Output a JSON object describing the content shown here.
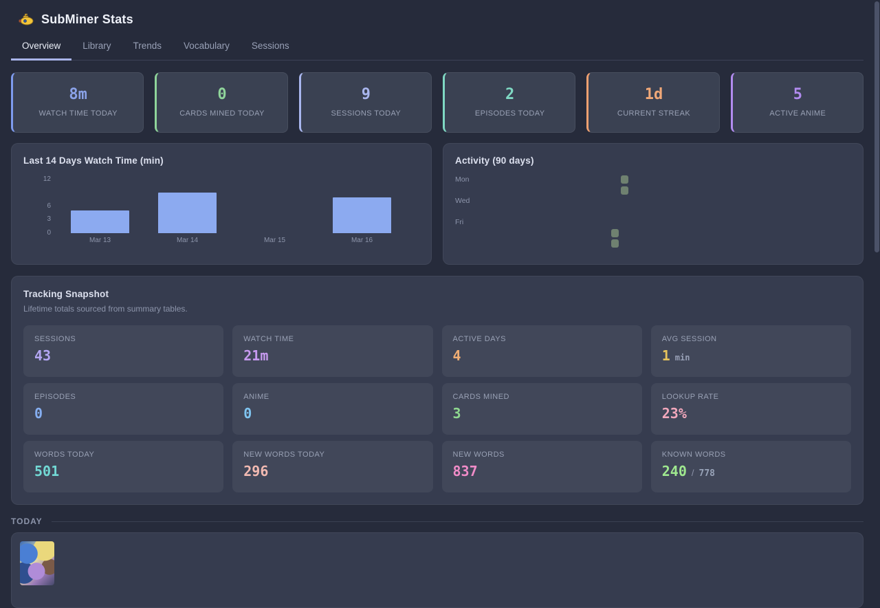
{
  "app": {
    "title": "SubMiner Stats",
    "logo_icon": "yellow-submarine"
  },
  "tabs": [
    {
      "label": "Overview",
      "active": true
    },
    {
      "label": "Library",
      "active": false
    },
    {
      "label": "Trends",
      "active": false
    },
    {
      "label": "Vocabulary",
      "active": false
    },
    {
      "label": "Sessions",
      "active": false
    }
  ],
  "stat_cards": [
    {
      "value": "8m",
      "label": "WATCH TIME TODAY",
      "color": "#8aa2e8",
      "accent": "#7e9bee"
    },
    {
      "value": "0",
      "label": "CARDS MINED TODAY",
      "color": "#8fd49a",
      "accent": "#8fd49a"
    },
    {
      "value": "9",
      "label": "SESSIONS TODAY",
      "color": "#a9b6ee",
      "accent": "#a9b6ee"
    },
    {
      "value": "2",
      "label": "EPISODES TODAY",
      "color": "#7fd8c3",
      "accent": "#7fd8c3"
    },
    {
      "value": "1d",
      "label": "CURRENT STREAK",
      "color": "#f0a878",
      "accent": "#f0a070"
    },
    {
      "value": "5",
      "label": "ACTIVE ANIME",
      "color": "#b28cf0",
      "accent": "#b28cf0"
    }
  ],
  "chart_data": [
    {
      "type": "bar",
      "title": "Last 14 Days Watch Time (min)",
      "categories": [
        "Mar 13",
        "Mar 14",
        "Mar 15",
        "Mar 16"
      ],
      "values": [
        5,
        9,
        0,
        8
      ],
      "yticks": [
        0,
        3,
        6,
        12
      ],
      "ylim": [
        0,
        13
      ],
      "xlabel": "",
      "ylabel": "minutes",
      "bar_color": "#8caaf0",
      "grid": false,
      "legend": "none"
    },
    {
      "type": "heatmap",
      "title": "Activity (90 days)",
      "rows": 7,
      "cols": 13,
      "first_row": "Mon",
      "row_labels": [
        "Mon",
        "Wed",
        "Fri"
      ],
      "row_label_rows": [
        0,
        2,
        4
      ],
      "active_cells": [
        {
          "col": 11,
          "row": 5
        },
        {
          "col": 11,
          "row": 6
        },
        {
          "col": 12,
          "row": 0
        },
        {
          "col": 12,
          "row": 1
        }
      ],
      "active_color": "#6f8170",
      "empty_color": "transparent"
    }
  ],
  "snapshot": {
    "title": "Tracking Snapshot",
    "subtitle": "Lifetime totals sourced from summary tables.",
    "tiles": [
      {
        "label": "SESSIONS",
        "value": "43",
        "color": "#b3a6f2"
      },
      {
        "label": "WATCH TIME",
        "value": "21m",
        "color": "#c79af0"
      },
      {
        "label": "ACTIVE DAYS",
        "value": "4",
        "color": "#f0ae74"
      },
      {
        "label": "AVG SESSION",
        "value": "1",
        "color": "#e6c35c",
        "suffix": "min"
      },
      {
        "label": "EPISODES",
        "value": "0",
        "color": "#85aef0"
      },
      {
        "label": "ANIME",
        "value": "0",
        "color": "#7fc4f0"
      },
      {
        "label": "CARDS MINED",
        "value": "3",
        "color": "#8fd98f"
      },
      {
        "label": "LOOKUP RATE",
        "value": "23%",
        "color": "#f2a8bc"
      },
      {
        "label": "WORDS TODAY",
        "value": "501",
        "color": "#72d8d4"
      },
      {
        "label": "NEW WORDS TODAY",
        "value": "296",
        "color": "#f2bab2"
      },
      {
        "label": "NEW WORDS",
        "value": "837",
        "color": "#f08cc8"
      },
      {
        "label": "KNOWN WORDS",
        "value": "240",
        "color": "#9fe88f",
        "sep": "/",
        "total": "778"
      }
    ]
  },
  "today": {
    "label": "TODAY"
  },
  "colors": {
    "page_bg": "#262b3b",
    "panel_bg": "#363c4f",
    "tile_bg": "#414759",
    "card_bg": "#3a4152",
    "tab_active_underline": "#a9b4ea",
    "muted_text": "#99a1b5",
    "bright_text": "#eef1f8",
    "scrollbar_thumb": "#4b5268"
  }
}
